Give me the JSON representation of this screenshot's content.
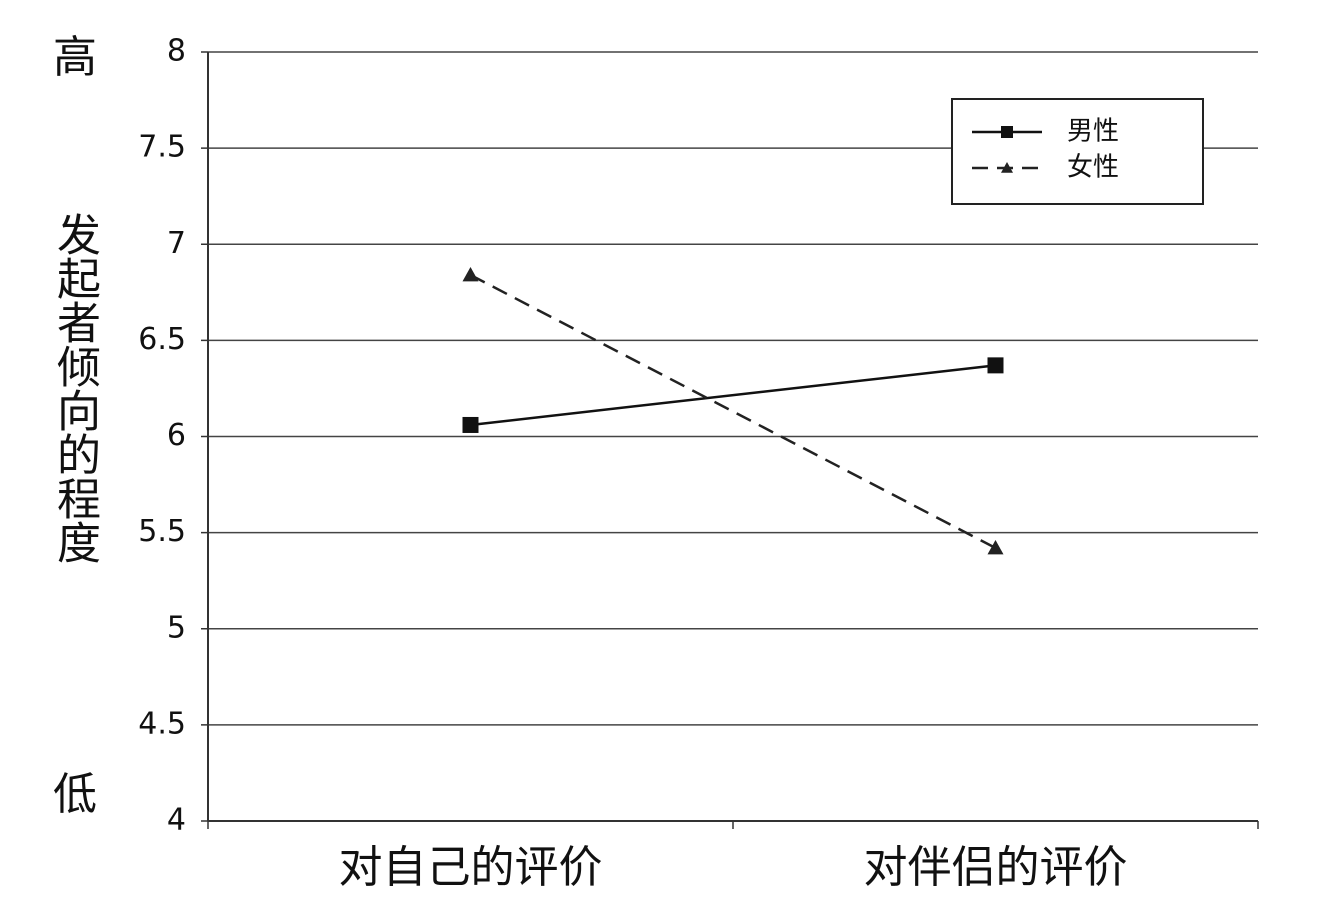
{
  "chart_data": {
    "type": "line",
    "y_label_high": "高",
    "ylabel": "发起者倾向的程度",
    "y_label_low": "低",
    "categories": [
      "对自己的评价",
      "对伴侣的评价"
    ],
    "series": [
      {
        "name": "男性",
        "color": "#111111",
        "line_style": "solid",
        "marker": "square",
        "values": [
          6.06,
          6.37
        ]
      },
      {
        "name": "女性",
        "color": "#222222",
        "line_style": "dashed",
        "marker": "triangle",
        "values": [
          6.84,
          5.42
        ]
      }
    ],
    "ylim": [
      4,
      8
    ],
    "yticks": [
      4,
      4.5,
      5,
      5.5,
      6,
      6.5,
      7,
      7.5,
      8
    ],
    "grid": true,
    "legend_position": "upper right"
  }
}
